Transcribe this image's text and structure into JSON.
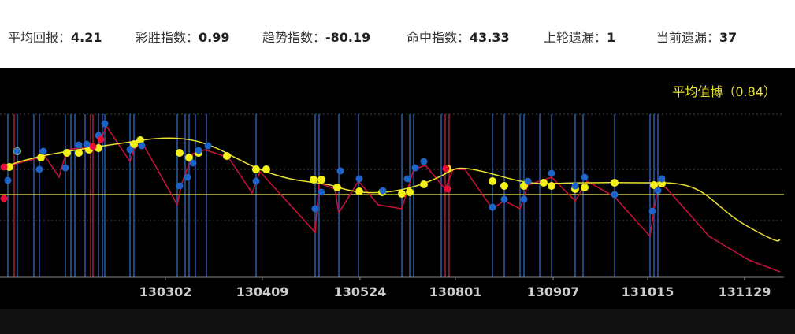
{
  "stats": [
    {
      "label": "平均回报：",
      "value": 4.21
    },
    {
      "label": "彩胜指数：",
      "value": 0.99
    },
    {
      "label": "趋势指数：",
      "value": -80.19
    },
    {
      "label": "命中指数：",
      "value": 43.33
    },
    {
      "label": "上轮遗漏：",
      "value": 1
    },
    {
      "label": "当前遗漏：",
      "value": 37
    }
  ],
  "chart": {
    "legend": "平均值博（0.84）",
    "xticks": [
      "130302",
      "130409",
      "130524",
      "130801",
      "130907",
      "131015",
      "131129"
    ]
  }
}
